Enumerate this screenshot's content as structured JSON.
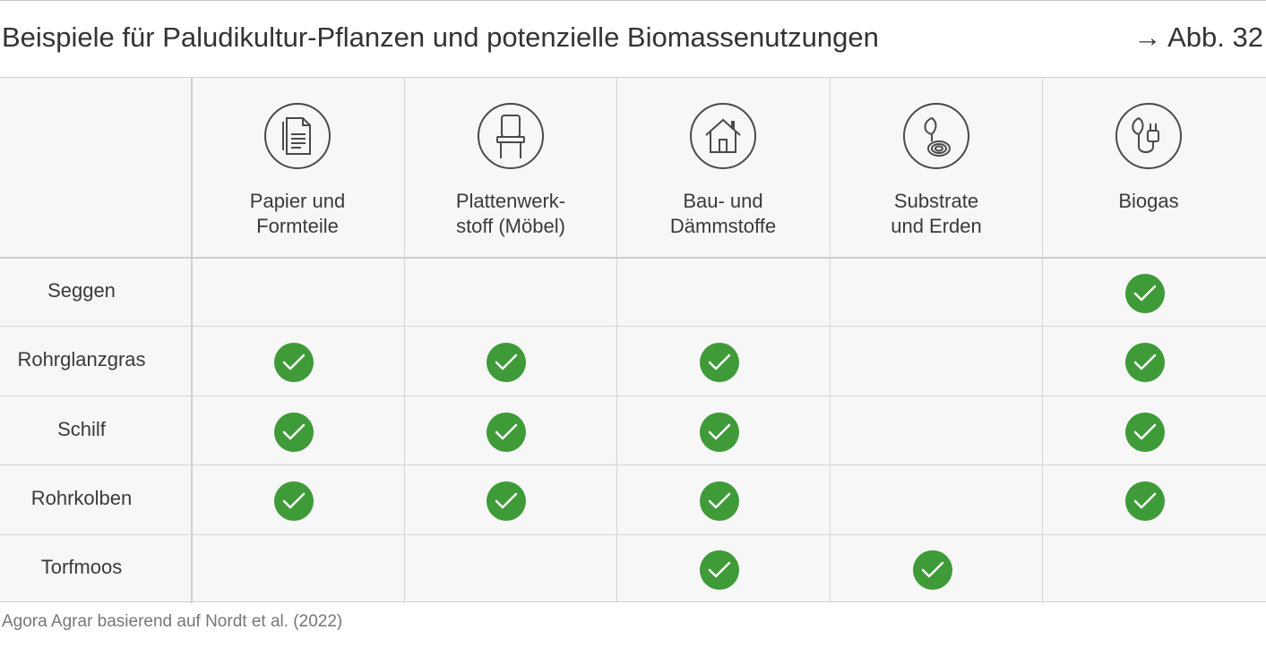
{
  "header": {
    "title": "Beispiele für Paludikultur-Pflanzen und potenzielle Biomassenutzungen",
    "figure_ref": "→ Abb. 32"
  },
  "chart_data": {
    "type": "table",
    "columns": [
      {
        "label": "Papier und\nFormteile",
        "icon": "paper-document-icon"
      },
      {
        "label": "Plattenwerk-\nstoff (Möbel)",
        "icon": "chair-icon"
      },
      {
        "label": "Bau- und\nDämmstoffe",
        "icon": "house-icon"
      },
      {
        "label": "Substrate\nund Erden",
        "icon": "leaf-soil-icon"
      },
      {
        "label": "Biogas",
        "icon": "leaf-plug-icon"
      }
    ],
    "rows": [
      {
        "label": "Seggen",
        "values": [
          false,
          false,
          false,
          false,
          true
        ]
      },
      {
        "label": "Rohrglanzgras",
        "values": [
          true,
          true,
          true,
          false,
          true
        ]
      },
      {
        "label": "Schilf",
        "values": [
          true,
          true,
          true,
          false,
          true
        ]
      },
      {
        "label": "Rohrkolben",
        "values": [
          true,
          true,
          true,
          false,
          true
        ]
      },
      {
        "label": "Torfmoos",
        "values": [
          false,
          false,
          true,
          true,
          false
        ]
      }
    ],
    "check_color": "#3e9b38",
    "line_color": "#d6d6d6"
  },
  "footer": {
    "source": "Agora Agrar basierend auf Nordt et al. (2022)"
  }
}
